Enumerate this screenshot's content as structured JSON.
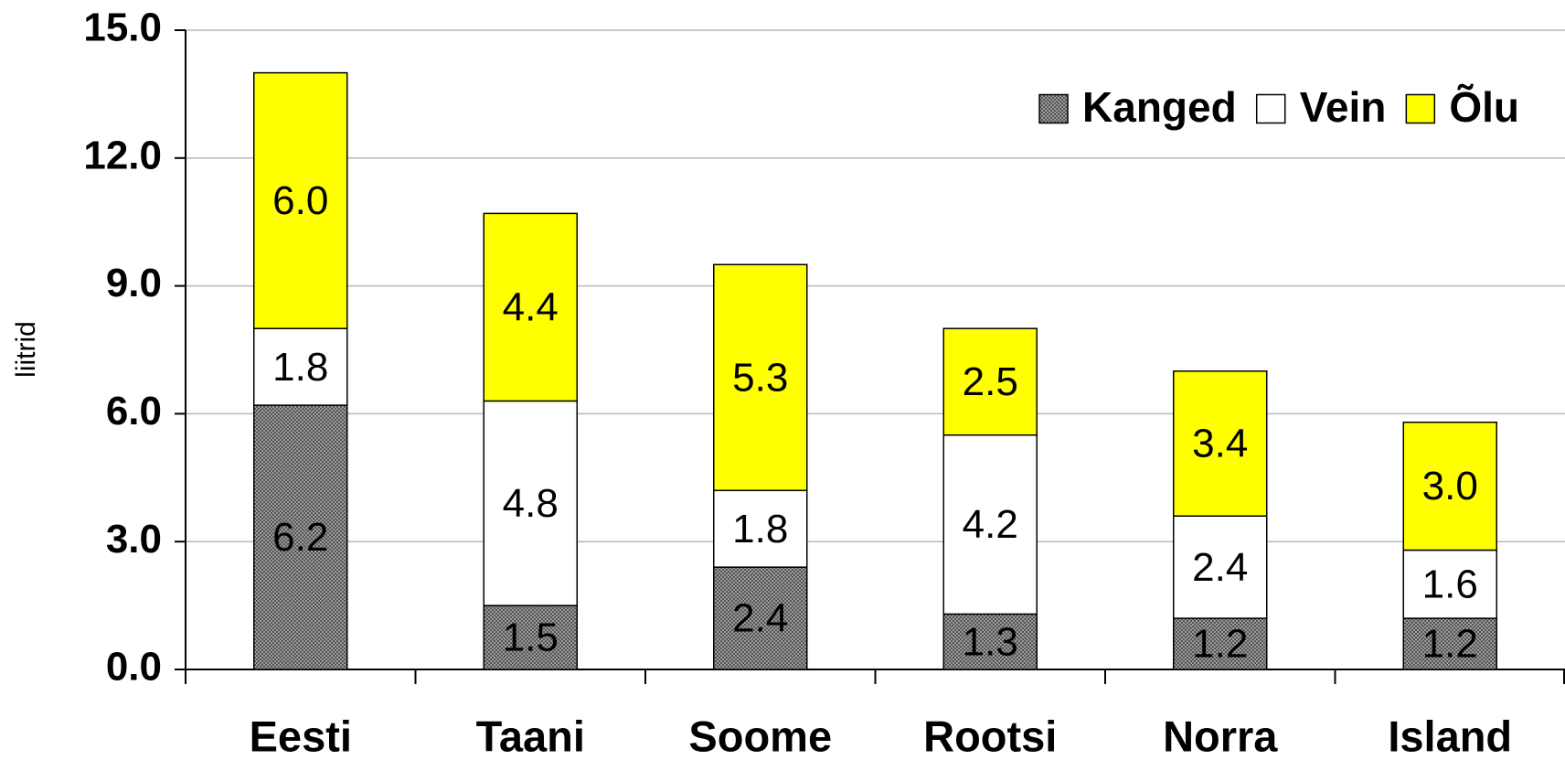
{
  "chart_data": {
    "type": "stacked_bar",
    "y_label": "liitrid",
    "categories": [
      "Eesti",
      "Taani",
      "Soome",
      "Rootsi",
      "Norra",
      "Island"
    ],
    "series": [
      {
        "name": "Kanged",
        "color": "#9a9a9a",
        "values": [
          6.2,
          1.5,
          2.4,
          1.3,
          1.2,
          1.2
        ],
        "value_labels": [
          "6.2",
          "1.5",
          "2.4",
          "1.3",
          "1.2",
          "1.2"
        ]
      },
      {
        "name": "Vein",
        "color": "#ffffff",
        "values": [
          1.8,
          4.8,
          1.8,
          4.2,
          2.4,
          1.6
        ],
        "value_labels": [
          "1.8",
          "4.8",
          "1.8",
          "4.2",
          "2.4",
          "1.6"
        ]
      },
      {
        "name": "Õlu",
        "color": "#ffff00",
        "values": [
          6.0,
          4.4,
          5.3,
          2.5,
          3.4,
          3.0
        ],
        "value_labels": [
          "6.0",
          "4.4",
          "5.3",
          "2.5",
          "3.4",
          "3.0"
        ]
      }
    ],
    "ylim": [
      0,
      15
    ],
    "yticks": [
      {
        "value": 0,
        "label": "0.0"
      },
      {
        "value": 3,
        "label": "3.0"
      },
      {
        "value": 6,
        "label": "6.0"
      },
      {
        "value": 9,
        "label": "9.0"
      },
      {
        "value": 12,
        "label": "12.0"
      },
      {
        "value": 15,
        "label": "15.0"
      }
    ],
    "grid": true,
    "legend": "upper right"
  }
}
